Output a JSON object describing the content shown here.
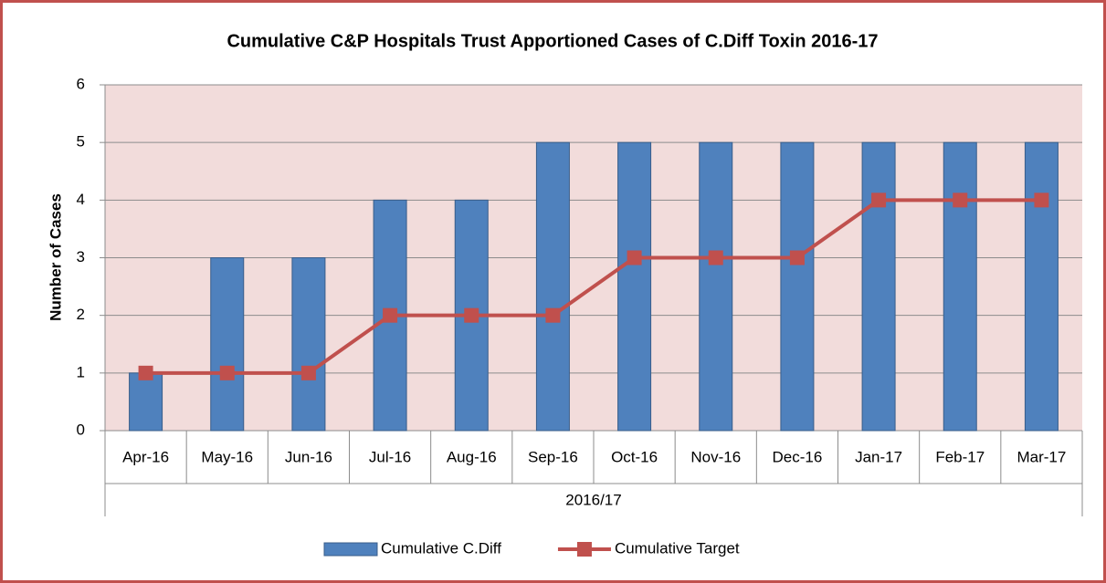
{
  "chart_data": {
    "type": "bar",
    "title": "Cumulative C&P Hospitals Trust Apportioned Cases of C.Diff Toxin 2016-17",
    "y_label": "Number of Cases",
    "categories": [
      "Apr-16",
      "May-16",
      "Jun-16",
      "Jul-16",
      "Aug-16",
      "Sep-16",
      "Oct-16",
      "Nov-16",
      "Dec-16",
      "Jan-17",
      "Feb-17",
      "Mar-17"
    ],
    "category_group": "2016/17",
    "series": [
      {
        "name": "Cumulative C.Diff",
        "type": "bar",
        "color": "#4f81bd",
        "values": [
          1,
          3,
          3,
          4,
          4,
          5,
          5,
          5,
          5,
          5,
          5,
          5
        ]
      },
      {
        "name": "Cumulative Target",
        "type": "line",
        "color": "#c0504d",
        "values": [
          1,
          1,
          1,
          2,
          2,
          2,
          3,
          3,
          3,
          4,
          4,
          4
        ]
      }
    ],
    "ylim": [
      0,
      6
    ],
    "yticks": [
      0,
      1,
      2,
      3,
      4,
      5,
      6
    ],
    "grid": true,
    "legend": "bottom"
  }
}
